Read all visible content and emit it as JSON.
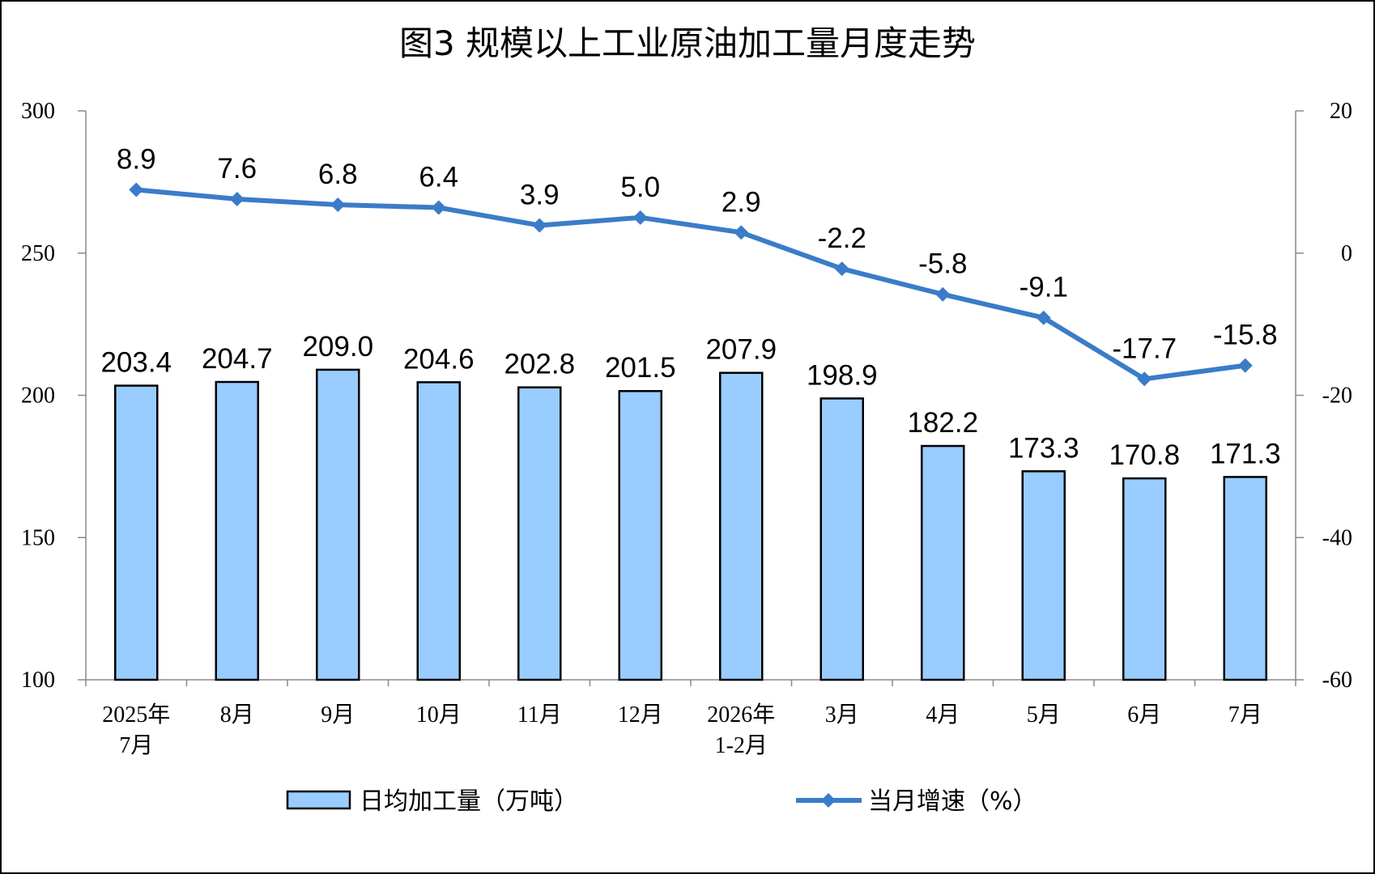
{
  "chart_data": {
    "type": "bar",
    "title": "图3 规模以上工业原油加工量月度走势",
    "categories": [
      [
        "2025年",
        "7月"
      ],
      [
        "8月"
      ],
      [
        "9月"
      ],
      [
        "10月"
      ],
      [
        "11月"
      ],
      [
        "12月"
      ],
      [
        "2026年",
        "1-2月"
      ],
      [
        "3月"
      ],
      [
        "4月"
      ],
      [
        "5月"
      ],
      [
        "6月"
      ],
      [
        "7月"
      ]
    ],
    "series": [
      {
        "name": "日均加工量（万吨）",
        "type": "bar",
        "axis": "left",
        "color": "#99CCFF",
        "values": [
          203.4,
          204.7,
          209.0,
          204.6,
          202.8,
          201.5,
          207.9,
          198.9,
          182.2,
          173.3,
          170.8,
          171.3
        ],
        "labels": [
          "203.4",
          "204.7",
          "209.0",
          "204.6",
          "202.8",
          "201.5",
          "207.9",
          "198.9",
          "182.2",
          "173.3",
          "170.8",
          "171.3"
        ]
      },
      {
        "name": "当月增速（%）",
        "type": "line",
        "axis": "right",
        "color": "#3A7CC8",
        "values": [
          8.9,
          7.6,
          6.8,
          6.4,
          3.9,
          5.0,
          2.9,
          -2.2,
          -5.8,
          -9.1,
          -17.7,
          -15.8
        ],
        "labels": [
          "8.9",
          "7.6",
          "6.8",
          "6.4",
          "3.9",
          "5.0",
          "2.9",
          "-2.2",
          "-5.8",
          "-9.1",
          "-17.7",
          "-15.8"
        ]
      }
    ],
    "y_left": {
      "lim": [
        100,
        300
      ],
      "ticks": [
        "100",
        "150",
        "200",
        "250",
        "300"
      ]
    },
    "y_right": {
      "lim": [
        -60,
        20
      ],
      "ticks": [
        "-60",
        "-40",
        "-20",
        "0",
        "20"
      ]
    },
    "grid": false,
    "legend_position": "bottom"
  }
}
